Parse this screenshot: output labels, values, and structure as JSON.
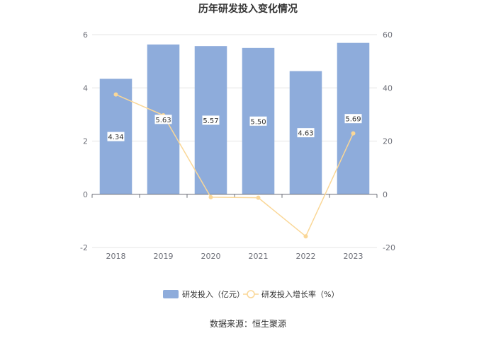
{
  "chart_data": {
    "type": "bar",
    "title": "历年研发投入变化情况",
    "categories": [
      "2018",
      "2019",
      "2020",
      "2021",
      "2022",
      "2023"
    ],
    "series": [
      {
        "name": "研发投入（亿元）",
        "type": "bar",
        "axis": "left",
        "values": [
          4.34,
          5.63,
          5.57,
          5.5,
          4.63,
          5.69
        ],
        "labels": [
          "4.34",
          "5.63",
          "5.57",
          "5.50",
          "4.63",
          "5.69"
        ]
      },
      {
        "name": "研发投入增长率（%）",
        "type": "line",
        "axis": "right",
        "values": [
          37.5,
          29.7,
          -1.1,
          -1.3,
          -15.8,
          22.9
        ]
      }
    ],
    "y_left": {
      "min": -2,
      "max": 6,
      "ticks": [
        "6",
        "4",
        "2",
        "0",
        "-2"
      ],
      "tick_values": [
        6,
        4,
        2,
        0,
        -2
      ]
    },
    "y_right": {
      "min": -20,
      "max": 60,
      "ticks": [
        "60",
        "40",
        "20",
        "0",
        "-20"
      ],
      "tick_values": [
        60,
        40,
        20,
        0,
        -20
      ]
    },
    "grid": true,
    "legend_position": "bottom",
    "colors": {
      "bar": "#8eacdb",
      "line": "#fad797",
      "grid": "#e6e6e6",
      "axis": "#6e7079",
      "label_bg": "#ffffff"
    }
  },
  "footer": {
    "source": "数据来源：恒生聚源"
  }
}
